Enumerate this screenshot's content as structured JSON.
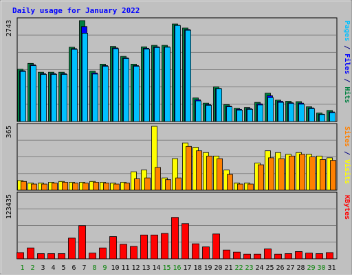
{
  "chart_data": {
    "type": "bar",
    "title": "Daily usage for January 2022",
    "categories": [
      "1",
      "2",
      "3",
      "4",
      "5",
      "6",
      "7",
      "8",
      "9",
      "10",
      "11",
      "12",
      "13",
      "14",
      "15",
      "16",
      "17",
      "18",
      "19",
      "20",
      "21",
      "22",
      "23",
      "24",
      "25",
      "26",
      "27",
      "28",
      "29",
      "30",
      "31"
    ],
    "weekend_days": [
      "1",
      "2",
      "8",
      "9",
      "15",
      "16",
      "22",
      "23",
      "29",
      "30"
    ],
    "panels": [
      {
        "id": "hits-files-pages",
        "axis_max_label": "2743",
        "ylim": [
          0,
          2743
        ],
        "ylabel_parts": [
          {
            "text": "Pages",
            "color": "#00c0ff"
          },
          {
            "text": " / ",
            "color": "#000080"
          },
          {
            "text": "Files",
            "color": "#0000ff"
          },
          {
            "text": " / ",
            "color": "#000080"
          },
          {
            "text": "Hits",
            "color": "#008040"
          }
        ],
        "series": [
          {
            "name": "Hits",
            "color": "#008040",
            "values": [
              1420,
              1580,
              1340,
              1340,
              1340,
              2020,
              2743,
              1370,
              1560,
              2040,
              1770,
              1560,
              2030,
              2070,
              2070,
              2650,
              2540,
              640,
              500,
              940,
              460,
              360,
              380,
              520,
              770,
              580,
              550,
              540,
              400,
              230,
              300
            ]
          },
          {
            "name": "Files",
            "color": "#0000ff",
            "values": [
              1380,
              1540,
              1300,
              1300,
              1300,
              1980,
              2580,
              1320,
              1520,
              2000,
              1730,
              1520,
              1990,
              2030,
              2030,
              2620,
              2500,
              590,
              460,
              900,
              420,
              330,
              350,
              480,
              700,
              550,
              510,
              500,
              370,
              200,
              260
            ]
          },
          {
            "name": "Pages",
            "color": "#00c0ff",
            "values": [
              1360,
              1520,
              1280,
              1280,
              1280,
              1960,
              2400,
              1290,
              1500,
              1980,
              1710,
              1500,
              1970,
              2010,
              2020,
              2610,
              2480,
              560,
              440,
              890,
              400,
              310,
              330,
              450,
              650,
              520,
              490,
              470,
              350,
              190,
              240
            ]
          }
        ]
      },
      {
        "id": "visits-sites",
        "axis_max_label": "365",
        "ylim": [
          0,
          365
        ],
        "ylabel_parts": [
          {
            "text": "Sites",
            "color": "#ff8000"
          },
          {
            "text": " / ",
            "color": "#000080"
          },
          {
            "text": "Visits",
            "color": "#ffff00"
          }
        ],
        "series": [
          {
            "name": "Visits",
            "color": "#ffff00",
            "values": [
              55,
              40,
              40,
              45,
              50,
              45,
              45,
              50,
              45,
              40,
              45,
              105,
              115,
              365,
              70,
              180,
              270,
              245,
              215,
              195,
              115,
              40,
              40,
              155,
              225,
              215,
              205,
              215,
              205,
              195,
              185
            ]
          },
          {
            "name": "Sites",
            "color": "#ff8000",
            "values": [
              50,
              35,
              35,
              40,
              45,
              40,
              40,
              45,
              40,
              35,
              40,
              65,
              70,
              130,
              60,
              70,
              250,
              225,
              195,
              180,
              90,
              35,
              35,
              145,
              185,
              180,
              195,
              205,
              190,
              175,
              170
            ]
          }
        ]
      },
      {
        "id": "kbytes",
        "axis_max_label": "123435",
        "ylim": [
          0,
          123435
        ],
        "ylabel_parts": [
          {
            "text": "KBytes",
            "color": "#ff0000"
          }
        ],
        "series": [
          {
            "name": "KBytes",
            "color": "#ff0000",
            "values": [
              12000,
              21000,
              10000,
              10000,
              10000,
              40000,
              64000,
              11000,
              21000,
              43000,
              28000,
              24000,
              46000,
              46000,
              49000,
              80000,
              68000,
              29000,
              23000,
              48000,
              17000,
              13000,
              9000,
              9000,
              19000,
              9000,
              10000,
              14000,
              11000,
              10000,
              12000
            ]
          }
        ]
      }
    ]
  }
}
